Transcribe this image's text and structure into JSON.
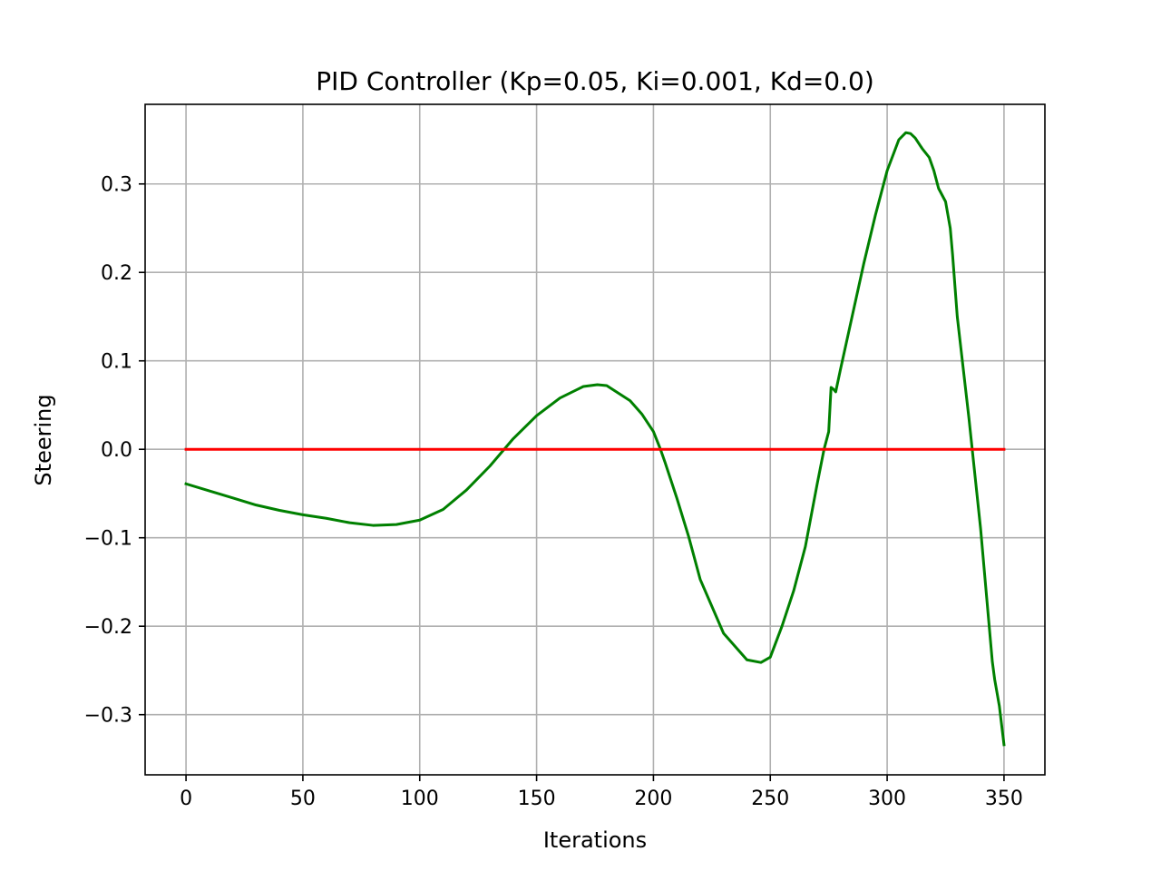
{
  "chart_data": {
    "type": "line",
    "title": "PID Controller (Kp=0.05, Ki=0.001, Kd=0.0)",
    "xlabel": "Iterations",
    "ylabel": "Steering",
    "xlim": [
      -17.5,
      367.5
    ],
    "ylim": [
      -0.368,
      0.39
    ],
    "xticks": [
      0,
      50,
      100,
      150,
      200,
      250,
      300,
      350
    ],
    "yticks": [
      -0.3,
      -0.2,
      -0.1,
      0.0,
      0.1,
      0.2,
      0.3
    ],
    "xtick_labels": [
      "0",
      "50",
      "100",
      "150",
      "200",
      "250",
      "300",
      "350"
    ],
    "ytick_labels": [
      "−0.3",
      "−0.2",
      "−0.1",
      "0.0",
      "0.1",
      "0.2",
      "0.3"
    ],
    "grid": true,
    "series": [
      {
        "color": "#008000",
        "x": [
          0,
          10,
          20,
          30,
          40,
          50,
          60,
          70,
          80,
          90,
          100,
          110,
          120,
          130,
          140,
          150,
          160,
          170,
          176,
          180,
          190,
          195,
          200,
          203,
          205,
          210,
          215,
          220,
          230,
          240,
          246,
          250,
          255,
          260,
          265,
          270,
          273,
          275,
          276,
          277,
          278,
          280,
          285,
          290,
          295,
          300,
          305,
          308,
          310,
          312,
          315,
          318,
          320,
          322,
          325,
          327,
          328,
          330,
          335,
          340,
          343,
          345,
          346,
          348,
          350
        ],
        "y": [
          -0.039,
          -0.047,
          -0.055,
          -0.063,
          -0.069,
          -0.074,
          -0.078,
          -0.083,
          -0.086,
          -0.085,
          -0.08,
          -0.068,
          -0.046,
          -0.019,
          0.012,
          0.038,
          0.058,
          0.071,
          0.073,
          0.072,
          0.055,
          0.04,
          0.02,
          0.0,
          -0.015,
          -0.055,
          -0.098,
          -0.147,
          -0.208,
          -0.238,
          -0.241,
          -0.235,
          -0.2,
          -0.16,
          -0.11,
          -0.04,
          0.0,
          0.02,
          0.07,
          0.068,
          0.065,
          0.09,
          0.15,
          0.21,
          0.265,
          0.315,
          0.35,
          0.358,
          0.357,
          0.352,
          0.34,
          0.33,
          0.315,
          0.295,
          0.28,
          0.25,
          0.22,
          0.15,
          0.035,
          -0.09,
          -0.18,
          -0.24,
          -0.26,
          -0.29,
          -0.334
        ]
      },
      {
        "color": "#ff0000",
        "x": [
          0,
          350
        ],
        "y": [
          0,
          0
        ]
      }
    ]
  }
}
